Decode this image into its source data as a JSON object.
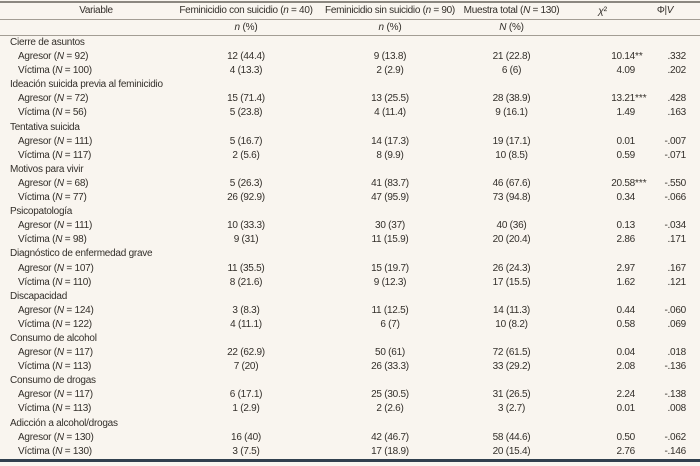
{
  "colors": {
    "background": "#f9f5ef",
    "text": "#332f2a",
    "rule": "#a39d94",
    "top_rule": "#8b8780",
    "bottom_rule": "#31404f"
  },
  "table": {
    "header": {
      "variable": "Variable",
      "con_suicidio": "Feminicidio con suicidio (n = 40)",
      "sin_suicidio": "Feminicidio sin suicidio (n = 90)",
      "muestra_total": "Muestra total (N = 130)",
      "chi2": "χ²",
      "phiv": "Φ|V"
    },
    "subheader": {
      "con_suicidio": "n (%)",
      "sin_suicidio": "n (%)",
      "muestra_total": "N (%)"
    },
    "groups": [
      {
        "label": "Cierre de asuntos",
        "rows": [
          {
            "label": "Agresor (N = 92)",
            "con": "12 (44.4)",
            "sin": "9 (13.8)",
            "total": "21 (22.8)",
            "chi2": "10.14**",
            "phiv": ".332"
          },
          {
            "label": "Víctima (N = 100)",
            "con": "4 (13.3)",
            "sin": "2 (2.9)",
            "total": "6 (6)",
            "chi2": "4.09",
            "phiv": ".202"
          }
        ]
      },
      {
        "label": "Ideación suicida previa al feminicidio",
        "rows": [
          {
            "label": "Agresor (N = 72)",
            "con": "15 (71.4)",
            "sin": "13 (25.5)",
            "total": "28 (38.9)",
            "chi2": "13.21***",
            "phiv": ".428"
          },
          {
            "label": "Víctima (N = 56)",
            "con": "5 (23.8)",
            "sin": "4 (11.4)",
            "total": "9 (16.1)",
            "chi2": "1.49",
            "phiv": ".163"
          }
        ]
      },
      {
        "label": "Tentativa suicida",
        "rows": [
          {
            "label": "Agresor (N = 111)",
            "con": "5 (16.7)",
            "sin": "14 (17.3)",
            "total": "19 (17.1)",
            "chi2": "0.01",
            "phiv": "-.007"
          },
          {
            "label": "Víctima (N = 117)",
            "con": "2 (5.6)",
            "sin": "8 (9.9)",
            "total": "10 (8.5)",
            "chi2": "0.59",
            "phiv": "-.071"
          }
        ]
      },
      {
        "label": "Motivos para vivir",
        "rows": [
          {
            "label": "Agresor (N = 68)",
            "con": "5 (26.3)",
            "sin": "41 (83.7)",
            "total": "46 (67.6)",
            "chi2": "20.58***",
            "phiv": "-.550"
          },
          {
            "label": "Víctima (N = 77)",
            "con": "26 (92.9)",
            "sin": "47 (95.9)",
            "total": "73 (94.8)",
            "chi2": "0.34",
            "phiv": "-.066"
          }
        ]
      },
      {
        "label": "Psicopatología",
        "rows": [
          {
            "label": "Agresor (N = 111)",
            "con": "10 (33.3)",
            "sin": "30 (37)",
            "total": "40 (36)",
            "chi2": "0.13",
            "phiv": "-.034"
          },
          {
            "label": "Víctima (N = 98)",
            "con": "9 (31)",
            "sin": "11 (15.9)",
            "total": "20 (20.4)",
            "chi2": "2.86",
            "phiv": ".171"
          }
        ]
      },
      {
        "label": "Diagnóstico de enfermedad grave",
        "rows": [
          {
            "label": "Agresor (N = 107)",
            "con": "11 (35.5)",
            "sin": "15 (19.7)",
            "total": "26 (24.3)",
            "chi2": "2.97",
            "phiv": ".167"
          },
          {
            "label": "Víctima (N = 110)",
            "con": "8 (21.6)",
            "sin": "9 (12.3)",
            "total": "17 (15.5)",
            "chi2": "1.62",
            "phiv": ".121"
          }
        ]
      },
      {
        "label": "Discapacidad",
        "rows": [
          {
            "label": "Agresor (N = 124)",
            "con": "3 (8.3)",
            "sin": "11 (12.5)",
            "total": "14 (11.3)",
            "chi2": "0.44",
            "phiv": "-.060"
          },
          {
            "label": "Víctima (N = 122)",
            "con": "4 (11.1)",
            "sin": "6 (7)",
            "total": "10 (8.2)",
            "chi2": "0.58",
            "phiv": ".069"
          }
        ]
      },
      {
        "label": "Consumo de alcohol",
        "rows": [
          {
            "label": "Agresor (N = 117)",
            "con": "22 (62.9)",
            "sin": "50 (61)",
            "total": "72 (61.5)",
            "chi2": "0.04",
            "phiv": ".018"
          },
          {
            "label": "Víctima (N = 113)",
            "con": "7 (20)",
            "sin": "26 (33.3)",
            "total": "33 (29.2)",
            "chi2": "2.08",
            "phiv": "-.136"
          }
        ]
      },
      {
        "label": "Consumo de drogas",
        "rows": [
          {
            "label": "Agresor (N = 117)",
            "con": "6 (17.1)",
            "sin": "25 (30.5)",
            "total": "31 (26.5)",
            "chi2": "2.24",
            "phiv": "-.138"
          },
          {
            "label": "Víctima (N = 113)",
            "con": "1 (2.9)",
            "sin": "2 (2.6)",
            "total": "3 (2.7)",
            "chi2": "0.01",
            "phiv": ".008"
          }
        ]
      },
      {
        "label": "Adicción a alcohol/drogas",
        "rows": [
          {
            "label": "Agresor (N = 130)",
            "con": "16 (40)",
            "sin": "42 (46.7)",
            "total": "58 (44.6)",
            "chi2": "0.50",
            "phiv": "-.062"
          },
          {
            "label": "Víctima (N = 130)",
            "con": "3 (7.5)",
            "sin": "17 (18.9)",
            "total": "20 (15.4)",
            "chi2": "2.76",
            "phiv": "-.146"
          }
        ]
      }
    ]
  }
}
